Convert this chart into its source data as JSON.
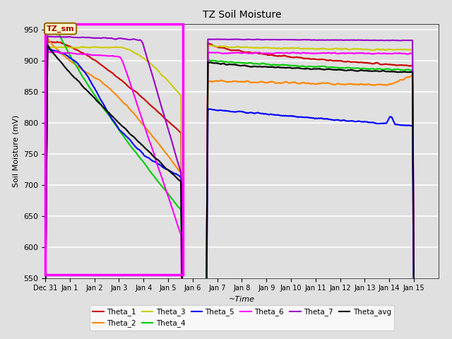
{
  "title": "TZ Soil Moisture",
  "ylabel": "Soil Moisture (mV)",
  "xlabel": "~Time",
  "ylim": [
    550,
    960
  ],
  "xlim_days": [
    -1,
    15
  ],
  "background_color": "#e0e0e0",
  "plot_bg_color": "#e0e0e0",
  "legend_labels": [
    "Theta_1",
    "Theta_2",
    "Theta_3",
    "Theta_4",
    "Theta_5",
    "Theta_6",
    "Theta_7",
    "Theta_avg"
  ],
  "legend_colors": [
    "#cc0000",
    "#ff8800",
    "#cccc00",
    "#00cc00",
    "#0000ff",
    "#ff00ff",
    "#9900cc",
    "#000000"
  ],
  "box_label": "TZ_sm",
  "box_color": "#ffffcc",
  "box_text_color": "#aa0000",
  "magenta_box_color": "#ff00ff",
  "tick_labels": [
    "Dec 31",
    "Jan 1",
    "Jan 2",
    "Jan 3",
    "Jan 4",
    "Jan 5",
    "Jan 6",
    "Jan 7",
    "Jan 8",
    "Jan 9",
    "Jan 10",
    "Jan 11",
    "Jan 12",
    "Jan 13",
    "Jan 14",
    "Jan 15"
  ],
  "tick_positions": [
    -1,
    0,
    1,
    2,
    3,
    4,
    5,
    6,
    7,
    8,
    9,
    10,
    11,
    12,
    13,
    14
  ],
  "seg1_x_start": -1,
  "seg1_x_end": 4.6,
  "seg2_x_start": 5.55,
  "seg2_x_end": 14.0,
  "gap_x_start": 4.6,
  "gap_x_end": 5.55
}
